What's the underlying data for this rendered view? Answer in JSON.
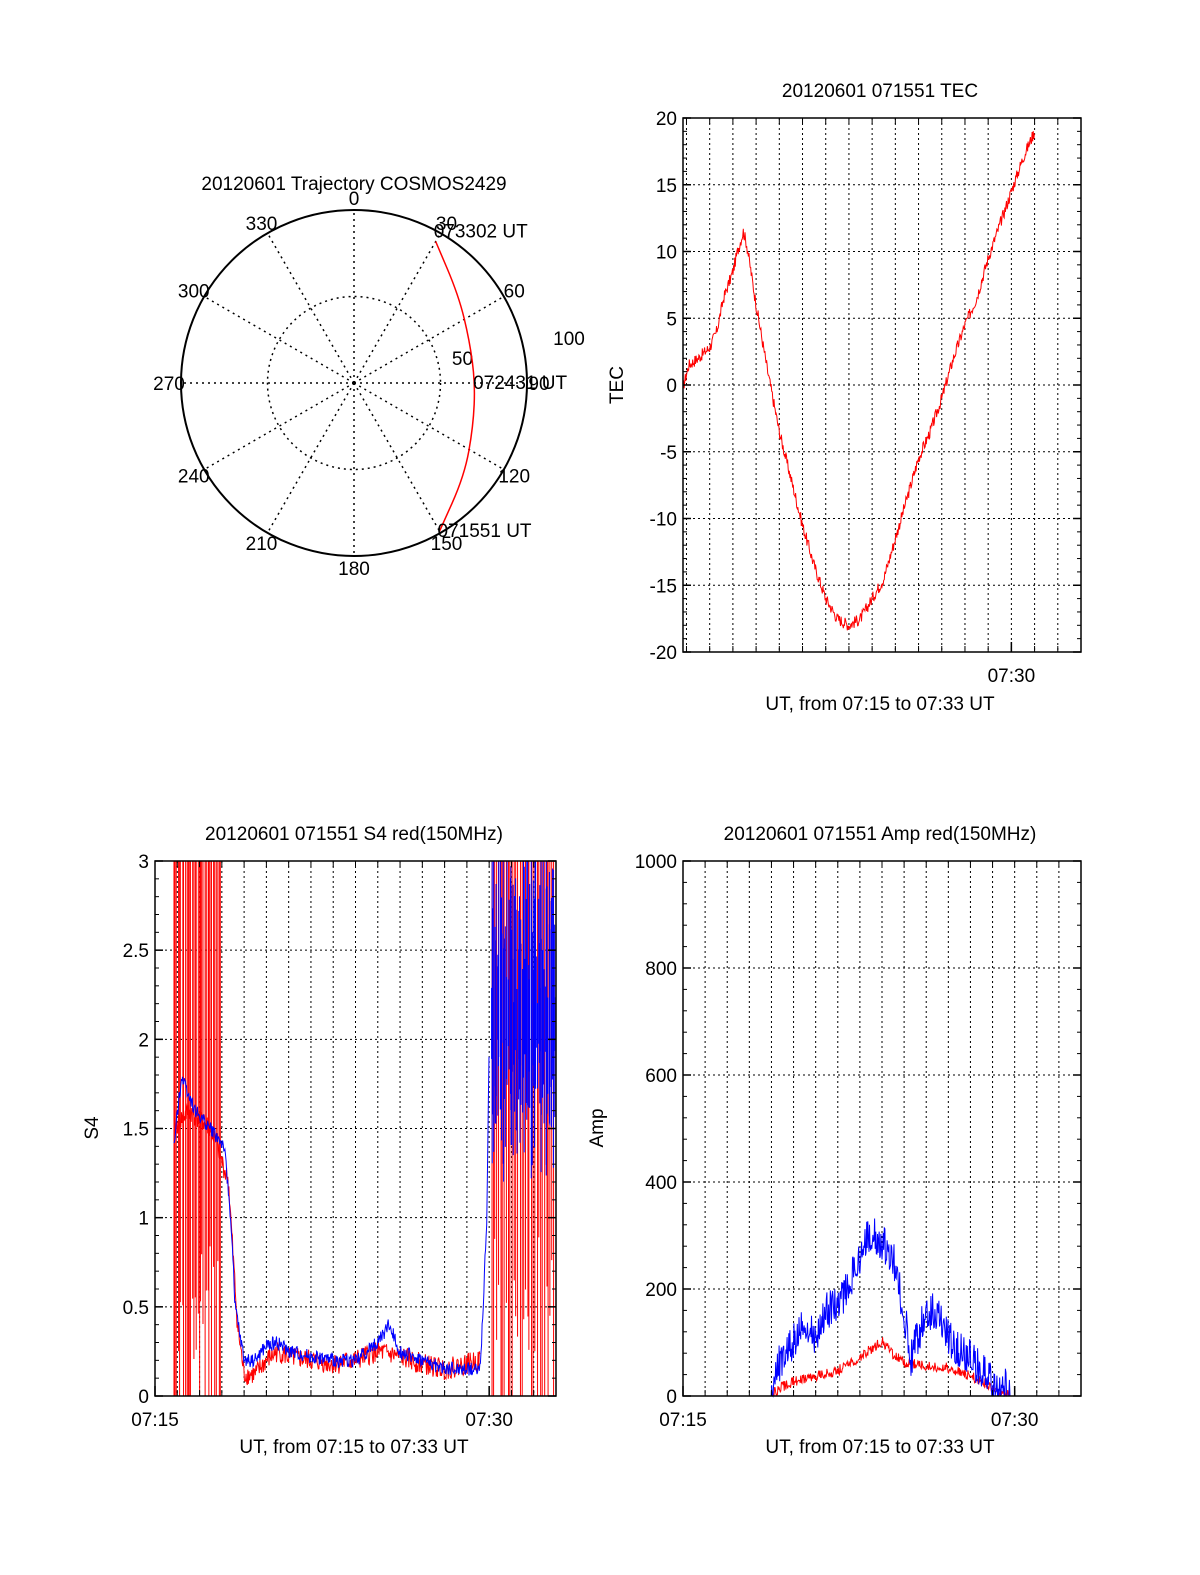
{
  "colors": {
    "red": "#ff0000",
    "blue": "#0000ff",
    "axis": "#000000",
    "grid": "#000000"
  },
  "chart_data": [
    {
      "id": "polar",
      "type": "scatter",
      "title": "20120601 Trajectory COSMOS2429",
      "projection": "polar",
      "radial_unit": "elevation (90 at edge)",
      "azimuth_ticks": [
        "0",
        "30",
        "60",
        "90",
        "120",
        "150",
        "180",
        "210",
        "240",
        "270",
        "300",
        "330"
      ],
      "radial_ticks": [
        "50",
        "100"
      ],
      "series": [
        {
          "color": "red",
          "points": [
            {
              "az": 30,
              "r": 85
            },
            {
              "az": 50,
              "r": 71
            },
            {
              "az": 70,
              "r": 64
            },
            {
              "az": 90,
              "r": 63
            },
            {
              "az": 110,
              "r": 66
            },
            {
              "az": 130,
              "r": 75
            },
            {
              "az": 150,
              "r": 89
            }
          ]
        }
      ],
      "annotations": [
        {
          "text": "073302 UT",
          "az": 30,
          "r": 85
        },
        {
          "text": "072431 UT",
          "az": 90,
          "r": 63
        },
        {
          "text": "071551 UT",
          "az": 150,
          "r": 89
        }
      ]
    },
    {
      "id": "tec",
      "type": "line",
      "title": "20120601 071551 TEC",
      "xlabel": "UT, from 07:15 to 07:33 UT",
      "ylabel": "TEC",
      "xlim": [
        15.85,
        33.0
      ],
      "ylim": [
        -20,
        20
      ],
      "y_ticks": [
        -20,
        -15,
        -10,
        -5,
        0,
        5,
        10,
        15,
        20
      ],
      "x_tick_labels": [
        {
          "x": 30,
          "label": "07:30"
        }
      ],
      "x_minor_ticks": [
        15.85,
        17,
        18,
        19,
        20,
        21,
        22,
        23,
        24,
        25,
        26,
        27,
        28,
        29,
        30,
        31,
        32,
        33
      ],
      "grid": true,
      "series": [
        {
          "color": "red",
          "noise": 0.45,
          "points": [
            [
              15.85,
              -0.2
            ],
            [
              16.1,
              1.5
            ],
            [
              16.5,
              2.0
            ],
            [
              17.0,
              2.8
            ],
            [
              17.3,
              4.0
            ],
            [
              17.6,
              6.5
            ],
            [
              18.0,
              8.5
            ],
            [
              18.2,
              10.0
            ],
            [
              18.45,
              11.5
            ],
            [
              18.6,
              10.5
            ],
            [
              19.0,
              6.0
            ],
            [
              19.5,
              1.0
            ],
            [
              20.0,
              -3.5
            ],
            [
              20.5,
              -7.0
            ],
            [
              21.0,
              -10.5
            ],
            [
              21.5,
              -13.5
            ],
            [
              22.0,
              -16.0
            ],
            [
              22.5,
              -17.5
            ],
            [
              23.0,
              -18.0
            ],
            [
              23.5,
              -17.5
            ],
            [
              24.0,
              -16.0
            ],
            [
              24.5,
              -14.5
            ],
            [
              25.0,
              -11.5
            ],
            [
              25.5,
              -8.5
            ],
            [
              26.0,
              -5.5
            ],
            [
              26.5,
              -3.5
            ],
            [
              27.0,
              -1.0
            ],
            [
              27.5,
              2.0
            ],
            [
              28.0,
              4.5
            ],
            [
              28.5,
              6.5
            ],
            [
              29.0,
              9.5
            ],
            [
              29.5,
              12.0
            ],
            [
              30.0,
              14.5
            ],
            [
              30.5,
              17.0
            ],
            [
              31.0,
              19.0
            ]
          ]
        }
      ]
    },
    {
      "id": "s4",
      "type": "line",
      "title": "20120601 071551 S4 red(150MHz)",
      "xlabel": "UT, from 07:15 to 07:33 UT",
      "ylabel": "S4",
      "xlim": [
        15.0,
        33.0
      ],
      "ylim": [
        0,
        3
      ],
      "y_ticks": [
        0,
        0.5,
        1,
        1.5,
        2,
        2.5,
        3
      ],
      "y_tick_labels": [
        "0",
        "0.5",
        "1",
        "1.5",
        "2",
        "2.5",
        "3"
      ],
      "x_tick_labels": [
        {
          "x": 15,
          "label": "07:15"
        },
        {
          "x": 30,
          "label": "07:30"
        }
      ],
      "grid": true,
      "series": [
        {
          "color": "red",
          "noise": 0.06,
          "spikes": [
            [
              15.85,
              18.0
            ],
            [
              30.1,
              33.0
            ]
          ],
          "points": [
            [
              15.85,
              1.5
            ],
            [
              16.5,
              1.6
            ],
            [
              17.5,
              1.5
            ],
            [
              18.3,
              1.2
            ],
            [
              18.7,
              0.4
            ],
            [
              19.0,
              0.12
            ],
            [
              19.5,
              0.12
            ],
            [
              20.0,
              0.2
            ],
            [
              20.5,
              0.25
            ],
            [
              21.0,
              0.22
            ],
            [
              22.0,
              0.2
            ],
            [
              23.0,
              0.18
            ],
            [
              24.0,
              0.2
            ],
            [
              25.0,
              0.25
            ],
            [
              26.0,
              0.22
            ],
            [
              27.0,
              0.18
            ],
            [
              28.0,
              0.15
            ],
            [
              29.0,
              0.18
            ],
            [
              29.6,
              0.2
            ]
          ]
        },
        {
          "color": "blue",
          "noise": 0.04,
          "spikes": [
            [
              30.1,
              33.0
            ]
          ],
          "points": [
            [
              15.85,
              1.4
            ],
            [
              16.2,
              1.8
            ],
            [
              16.8,
              1.6
            ],
            [
              17.5,
              1.5
            ],
            [
              18.1,
              1.4
            ],
            [
              18.4,
              1.0
            ],
            [
              18.6,
              0.5
            ],
            [
              19.0,
              0.2
            ],
            [
              19.5,
              0.2
            ],
            [
              20.0,
              0.28
            ],
            [
              20.5,
              0.3
            ],
            [
              21.0,
              0.25
            ],
            [
              22.0,
              0.22
            ],
            [
              23.0,
              0.2
            ],
            [
              24.0,
              0.2
            ],
            [
              25.0,
              0.3
            ],
            [
              25.5,
              0.4
            ],
            [
              26.0,
              0.25
            ],
            [
              27.0,
              0.2
            ],
            [
              28.0,
              0.15
            ],
            [
              29.0,
              0.15
            ],
            [
              29.6,
              0.15
            ],
            [
              29.9,
              1.0
            ],
            [
              30.0,
              2.0
            ]
          ]
        }
      ]
    },
    {
      "id": "amp",
      "type": "line",
      "title": "20120601 071551 Amp red(150MHz)",
      "xlabel": "UT, from 07:15 to 07:33 UT",
      "ylabel": "Amp",
      "xlim": [
        15.0,
        33.0
      ],
      "ylim": [
        0,
        1000
      ],
      "y_ticks": [
        0,
        200,
        400,
        600,
        800,
        1000
      ],
      "y_tick_labels": [
        "0",
        "200",
        "400",
        "600",
        "800",
        "1000"
      ],
      "x_tick_labels": [
        {
          "x": 15,
          "label": "07:15"
        },
        {
          "x": 30,
          "label": "07:30"
        }
      ],
      "grid": true,
      "series": [
        {
          "color": "red",
          "noise": 12,
          "points": [
            [
              15.85,
              0
            ],
            [
              19.0,
              0
            ],
            [
              19.5,
              15
            ],
            [
              20.0,
              25
            ],
            [
              21.0,
              35
            ],
            [
              22.0,
              45
            ],
            [
              23.0,
              70
            ],
            [
              24.0,
              100
            ],
            [
              24.5,
              75
            ],
            [
              25.0,
              60
            ],
            [
              26.0,
              55
            ],
            [
              27.0,
              50
            ],
            [
              28.0,
              35
            ],
            [
              29.0,
              15
            ],
            [
              29.5,
              5
            ],
            [
              29.8,
              0
            ],
            [
              33.0,
              0
            ]
          ]
        },
        {
          "color": "blue",
          "noise": 45,
          "points": [
            [
              15.85,
              0
            ],
            [
              19.0,
              0
            ],
            [
              19.2,
              40
            ],
            [
              19.8,
              80
            ],
            [
              20.3,
              120
            ],
            [
              21.0,
              100
            ],
            [
              21.5,
              150
            ],
            [
              22.0,
              160
            ],
            [
              22.5,
              200
            ],
            [
              23.0,
              250
            ],
            [
              23.5,
              300
            ],
            [
              24.0,
              280
            ],
            [
              24.5,
              250
            ],
            [
              25.0,
              150
            ],
            [
              25.3,
              60
            ],
            [
              25.6,
              100
            ],
            [
              26.0,
              150
            ],
            [
              26.5,
              150
            ],
            [
              27.0,
              100
            ],
            [
              28.0,
              60
            ],
            [
              28.5,
              40
            ],
            [
              29.0,
              20
            ],
            [
              29.5,
              10
            ],
            [
              29.8,
              0
            ],
            [
              33.0,
              0
            ]
          ]
        }
      ]
    }
  ]
}
